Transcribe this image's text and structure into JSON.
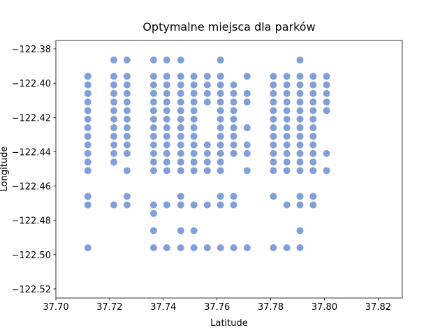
{
  "chart_data": {
    "type": "scatter",
    "title": "Optymalne miejsca dla parków",
    "x_label": "Latitude",
    "y_label": "Longitude",
    "color": "#4a78c6",
    "alpha": 0.7,
    "grid": false,
    "xlim": [
      37.7,
      37.829
    ],
    "ylim": [
      -122.5253,
      -122.3751
    ],
    "xticks": [
      {
        "value": 37.7,
        "label": "37.70"
      },
      37.72,
      37.74,
      37.76,
      37.78,
      {
        "value": 37.8,
        "label": "37.80"
      },
      37.82
    ],
    "yticks": [
      {
        "value": -122.38,
        "label": "−122.38"
      },
      {
        "value": -122.4,
        "label": "−122.40"
      },
      {
        "value": -122.42,
        "label": "−122.42"
      },
      {
        "value": -122.44,
        "label": "−122.44"
      },
      {
        "value": -122.46,
        "label": "−122.46"
      },
      {
        "value": -122.48,
        "label": "−122.48"
      },
      {
        "value": -122.5,
        "label": "−122.50"
      },
      {
        "value": -122.52,
        "label": "−122.52"
      }
    ],
    "x": [
      37.7119,
      37.7119,
      37.7119,
      37.7119,
      37.7119,
      37.7119,
      37.7119,
      37.7119,
      37.7119,
      37.7119,
      37.7119,
      37.7119,
      37.7119,
      37.7119,
      37.7119,
      37.7216,
      37.7216,
      37.7216,
      37.7216,
      37.7216,
      37.7216,
      37.7216,
      37.7216,
      37.7216,
      37.7216,
      37.7216,
      37.7216,
      37.7216,
      37.7265,
      37.7265,
      37.7265,
      37.7265,
      37.7265,
      37.7265,
      37.7265,
      37.7265,
      37.7265,
      37.7265,
      37.7265,
      37.7265,
      37.7265,
      37.7265,
      37.7364,
      37.7364,
      37.7364,
      37.7364,
      37.7364,
      37.7364,
      37.7364,
      37.7364,
      37.7364,
      37.7364,
      37.7364,
      37.7364,
      37.7364,
      37.7364,
      37.7364,
      37.7364,
      37.7364,
      37.7413,
      37.7413,
      37.7413,
      37.7413,
      37.7413,
      37.7413,
      37.7413,
      37.7413,
      37.7413,
      37.7413,
      37.7413,
      37.7413,
      37.7413,
      37.7413,
      37.7413,
      37.7465,
      37.7465,
      37.7465,
      37.7465,
      37.7465,
      37.7465,
      37.7465,
      37.7465,
      37.7465,
      37.7465,
      37.7465,
      37.7465,
      37.7465,
      37.7465,
      37.7465,
      37.7465,
      37.7465,
      37.7514,
      37.7514,
      37.7514,
      37.7514,
      37.7514,
      37.7514,
      37.7514,
      37.7514,
      37.7514,
      37.7514,
      37.7514,
      37.7514,
      37.7514,
      37.7514,
      37.7514,
      37.7564,
      37.7564,
      37.7564,
      37.7564,
      37.7564,
      37.7564,
      37.7564,
      37.7564,
      37.7564,
      37.7564,
      37.7613,
      37.7613,
      37.7613,
      37.7613,
      37.7613,
      37.7613,
      37.7613,
      37.7613,
      37.7613,
      37.7613,
      37.7613,
      37.7613,
      37.7613,
      37.7613,
      37.7613,
      37.7613,
      37.7662,
      37.7662,
      37.7662,
      37.7662,
      37.7662,
      37.7662,
      37.7662,
      37.7662,
      37.7662,
      37.7662,
      37.7662,
      37.7662,
      37.7712,
      37.7712,
      37.7712,
      37.7712,
      37.7712,
      37.7712,
      37.7712,
      37.7712,
      37.781,
      37.781,
      37.781,
      37.781,
      37.781,
      37.781,
      37.781,
      37.781,
      37.781,
      37.781,
      37.781,
      37.781,
      37.781,
      37.781,
      37.786,
      37.786,
      37.786,
      37.786,
      37.786,
      37.786,
      37.786,
      37.786,
      37.786,
      37.786,
      37.786,
      37.786,
      37.786,
      37.786,
      37.7909,
      37.7909,
      37.7909,
      37.7909,
      37.7909,
      37.7909,
      37.7909,
      37.7909,
      37.7909,
      37.7909,
      37.7909,
      37.7909,
      37.7909,
      37.7909,
      37.7909,
      37.7909,
      37.7909,
      37.7958,
      37.7958,
      37.7958,
      37.7958,
      37.7958,
      37.7958,
      37.7958,
      37.7958,
      37.7958,
      37.7958,
      37.7958,
      37.7958,
      37.7958,
      37.7958,
      37.8008,
      37.8008,
      37.8008,
      37.8008,
      37.8008,
      37.8008,
      37.8008
    ],
    "y": [
      -122.396,
      -122.401,
      -122.406,
      -122.411,
      -122.416,
      -122.421,
      -122.426,
      -122.431,
      -122.436,
      -122.441,
      -122.446,
      -122.451,
      -122.466,
      -122.471,
      -122.496,
      -122.3865,
      -122.396,
      -122.401,
      -122.406,
      -122.411,
      -122.416,
      -122.421,
      -122.426,
      -122.431,
      -122.436,
      -122.441,
      -122.446,
      -122.471,
      -122.3865,
      -122.396,
      -122.401,
      -122.406,
      -122.411,
      -122.416,
      -122.421,
      -122.426,
      -122.431,
      -122.436,
      -122.441,
      -122.451,
      -122.466,
      -122.471,
      -122.3865,
      -122.396,
      -122.401,
      -122.406,
      -122.411,
      -122.416,
      -122.421,
      -122.426,
      -122.431,
      -122.436,
      -122.441,
      -122.446,
      -122.451,
      -122.471,
      -122.476,
      -122.486,
      -122.496,
      -122.3865,
      -122.396,
      -122.401,
      -122.406,
      -122.411,
      -122.416,
      -122.421,
      -122.426,
      -122.431,
      -122.436,
      -122.441,
      -122.446,
      -122.451,
      -122.471,
      -122.496,
      -122.3865,
      -122.396,
      -122.401,
      -122.406,
      -122.411,
      -122.416,
      -122.421,
      -122.426,
      -122.431,
      -122.436,
      -122.441,
      -122.446,
      -122.451,
      -122.466,
      -122.471,
      -122.486,
      -122.496,
      -122.396,
      -122.401,
      -122.406,
      -122.411,
      -122.416,
      -122.421,
      -122.426,
      -122.431,
      -122.436,
      -122.441,
      -122.446,
      -122.451,
      -122.471,
      -122.486,
      -122.496,
      -122.396,
      -122.401,
      -122.406,
      -122.411,
      -122.436,
      -122.441,
      -122.446,
      -122.451,
      -122.471,
      -122.496,
      -122.3865,
      -122.396,
      -122.401,
      -122.406,
      -122.411,
      -122.416,
      -122.421,
      -122.426,
      -122.431,
      -122.436,
      -122.441,
      -122.446,
      -122.451,
      -122.466,
      -122.471,
      -122.496,
      -122.401,
      -122.406,
      -122.411,
      -122.416,
      -122.421,
      -122.426,
      -122.431,
      -122.436,
      -122.441,
      -122.466,
      -122.471,
      -122.496,
      -122.396,
      -122.406,
      -122.411,
      -122.426,
      -122.436,
      -122.441,
      -122.451,
      -122.496,
      -122.396,
      -122.401,
      -122.406,
      -122.411,
      -122.416,
      -122.421,
      -122.426,
      -122.431,
      -122.436,
      -122.441,
      -122.446,
      -122.451,
      -122.466,
      -122.496,
      -122.396,
      -122.401,
      -122.406,
      -122.411,
      -122.416,
      -122.421,
      -122.426,
      -122.431,
      -122.436,
      -122.441,
      -122.446,
      -122.451,
      -122.471,
      -122.496,
      -122.3865,
      -122.396,
      -122.401,
      -122.406,
      -122.411,
      -122.416,
      -122.421,
      -122.426,
      -122.431,
      -122.436,
      -122.441,
      -122.446,
      -122.451,
      -122.466,
      -122.471,
      -122.486,
      -122.496,
      -122.396,
      -122.401,
      -122.406,
      -122.411,
      -122.416,
      -122.421,
      -122.426,
      -122.431,
      -122.436,
      -122.441,
      -122.446,
      -122.451,
      -122.466,
      -122.471,
      -122.396,
      -122.401,
      -122.406,
      -122.411,
      -122.416,
      -122.441,
      -122.451
    ]
  }
}
